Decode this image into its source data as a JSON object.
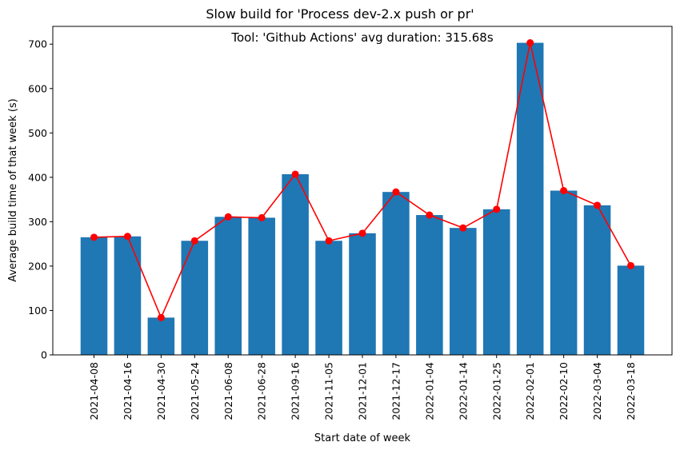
{
  "chart_data": {
    "type": "bar",
    "suptitle": "Slow build for 'Process dev-2.x push or pr'",
    "title": "Tool: 'Github Actions' avg duration: 315.68s",
    "xlabel": "Start date of week",
    "ylabel": "Average build time of that week (s)",
    "ylim": [
      0,
      740
    ],
    "yticks": [
      0,
      100,
      200,
      300,
      400,
      500,
      600,
      700
    ],
    "grid": false,
    "categories": [
      "2021-04-08",
      "2021-04-16",
      "2021-04-30",
      "2021-05-24",
      "2021-06-08",
      "2021-06-28",
      "2021-09-16",
      "2021-11-05",
      "2021-12-01",
      "2021-12-17",
      "2022-01-04",
      "2022-01-14",
      "2022-01-25",
      "2022-02-01",
      "2022-02-10",
      "2022-03-04",
      "2022-03-18"
    ],
    "values": [
      265,
      267,
      84,
      257,
      311,
      309,
      407,
      257,
      274,
      367,
      315,
      286,
      328,
      703,
      370,
      337,
      201
    ],
    "colors": {
      "bar": "#1f77b4",
      "line": "#ff0000",
      "marker": "#ff0000"
    }
  }
}
